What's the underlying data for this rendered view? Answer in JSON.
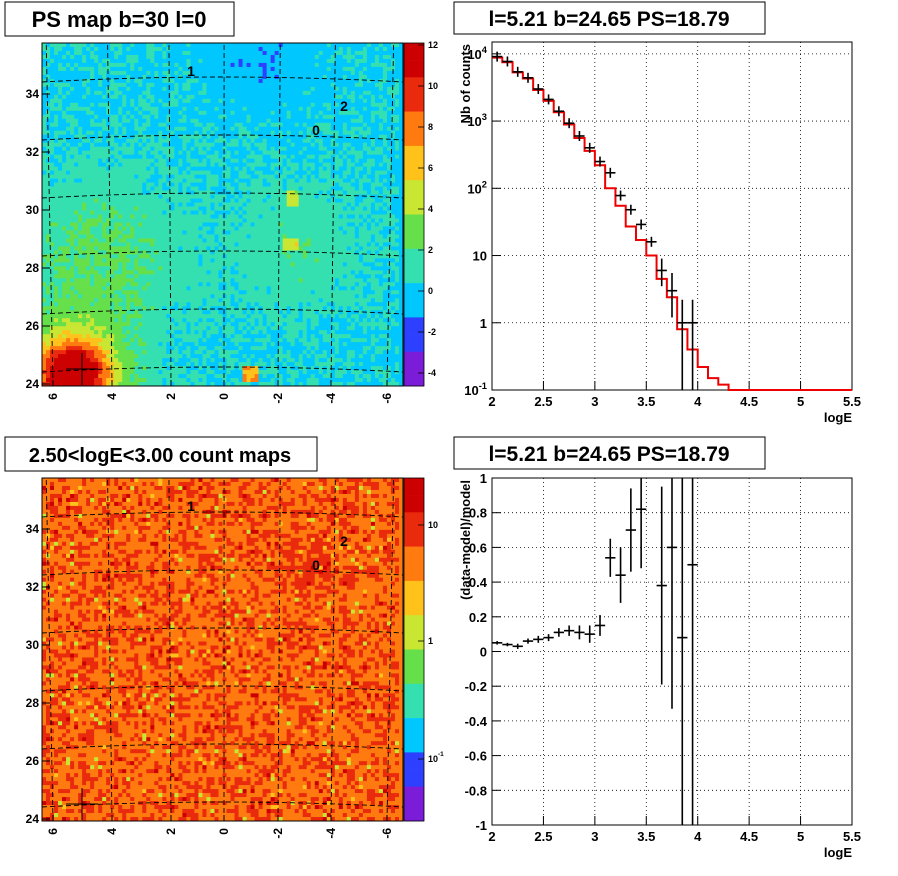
{
  "panels": {
    "tl": {
      "title": "PS map b=30 l=0"
    },
    "tr": {
      "title": "l=5.21 b=24.65 PS=18.79"
    },
    "bl": {
      "title": "2.50<logE<3.00 count maps"
    },
    "br": {
      "title": "l=5.21 b=24.65 PS=18.79"
    }
  },
  "chart_data": [
    {
      "type": "heatmap",
      "title": "PS map b=30 l=0",
      "x_ticks": [
        "6",
        "4",
        "2",
        "0",
        "-2",
        "-4",
        "-6"
      ],
      "y_ticks": [
        "24",
        "26",
        "28",
        "30",
        "32",
        "34"
      ],
      "colorbar_ticks": [
        "12",
        "10",
        "8",
        "6",
        "4",
        "2",
        "0",
        "-2",
        "-4"
      ],
      "source_labels": [
        "1",
        "2",
        "0"
      ],
      "colors": [
        "#7a1cd8",
        "#2d3fff",
        "#00c8ff",
        "#34e0b0",
        "#66e04a",
        "#c8e632",
        "#ffc21a",
        "#ff7a0f",
        "#ea2a0c",
        "#cc0000"
      ]
    },
    {
      "type": "line",
      "title": "l=5.21 b=24.65 PS=18.79",
      "xlabel": "logE",
      "ylabel": "Nb of counts",
      "yscale": "log",
      "xlim": [
        2,
        5.5
      ],
      "ylim": [
        0.1,
        15000
      ],
      "x_ticks": [
        "2",
        "2.5",
        "3",
        "3.5",
        "4",
        "4.5",
        "5",
        "5.5"
      ],
      "y_ticks": [
        "10^4",
        "10^3",
        "10^2",
        "10",
        "1",
        "10^-1"
      ],
      "grid": true,
      "model_bin_edges": [
        2.0,
        2.1,
        2.2,
        2.3,
        2.4,
        2.5,
        2.6,
        2.7,
        2.8,
        2.9,
        3.0,
        3.1,
        3.2,
        3.3,
        3.4,
        3.5,
        3.6,
        3.7,
        3.8,
        3.9,
        4.0,
        4.1,
        4.2,
        4.3,
        4.4,
        4.5,
        4.6,
        4.7,
        4.8,
        4.9,
        5.0,
        5.1,
        5.2,
        5.3,
        5.4,
        5.5
      ],
      "model_values": [
        8800,
        7500,
        5300,
        4300,
        2900,
        2000,
        1350,
        890,
        560,
        360,
        220,
        100,
        55,
        27,
        17,
        10,
        4.5,
        2.4,
        0.8,
        0.4,
        0.22,
        0.15,
        0.12,
        0.1,
        0.1,
        0.1,
        0.1,
        0.1,
        0.1,
        0.1,
        0.1,
        0.1,
        0.1,
        0.1,
        0.1
      ],
      "data_points": [
        {
          "x": 2.05,
          "y": 9100
        },
        {
          "x": 2.15,
          "y": 7700
        },
        {
          "x": 2.25,
          "y": 5400
        },
        {
          "x": 2.35,
          "y": 4400
        },
        {
          "x": 2.45,
          "y": 3000
        },
        {
          "x": 2.55,
          "y": 2100
        },
        {
          "x": 2.65,
          "y": 1400
        },
        {
          "x": 2.75,
          "y": 930
        },
        {
          "x": 2.85,
          "y": 600
        },
        {
          "x": 2.95,
          "y": 400
        },
        {
          "x": 3.05,
          "y": 250
        },
        {
          "x": 3.15,
          "y": 170
        },
        {
          "x": 3.25,
          "y": 78
        },
        {
          "x": 3.35,
          "y": 48
        },
        {
          "x": 3.45,
          "y": 29
        },
        {
          "x": 3.55,
          "y": 16
        },
        {
          "x": 3.65,
          "y": 6,
          "ylo": 3.5,
          "yhi": 9
        },
        {
          "x": 3.75,
          "y": 3,
          "ylo": 1.2,
          "yhi": 5.5
        },
        {
          "x": 3.85,
          "y": 1,
          "ylo": 0.1,
          "yhi": 2.2
        },
        {
          "x": 3.95,
          "y": 1,
          "ylo": 0.1,
          "yhi": 2.2
        }
      ],
      "colors": {
        "model": "#ee0000",
        "data": "#000000"
      }
    },
    {
      "type": "heatmap",
      "title": "2.50<logE<3.00 count maps",
      "x_ticks": [
        "6",
        "4",
        "2",
        "0",
        "-2",
        "-4",
        "-6"
      ],
      "y_ticks": [
        "24",
        "26",
        "28",
        "30",
        "32",
        "34"
      ],
      "colorbar_ticks": [
        "10",
        "1",
        "10^-1"
      ],
      "source_labels": [
        "1",
        "2",
        "0"
      ],
      "colors": [
        "#7a1cd8",
        "#2d3fff",
        "#00c8ff",
        "#34e0b0",
        "#66e04a",
        "#c8e632",
        "#ffc21a",
        "#ff7a0f",
        "#ea2a0c",
        "#cc0000"
      ]
    },
    {
      "type": "scatter",
      "title": "l=5.21 b=24.65 PS=18.79",
      "xlabel": "logE",
      "ylabel": "(data-model)/model",
      "xlim": [
        2,
        5.5
      ],
      "ylim": [
        -1,
        1
      ],
      "x_ticks": [
        "2",
        "2.5",
        "3",
        "3.5",
        "4",
        "4.5",
        "5",
        "5.5"
      ],
      "y_ticks": [
        "1",
        "0.8",
        "0.6",
        "0.4",
        "0.2",
        "0",
        "-0.2",
        "-0.4",
        "-0.6",
        "-0.8",
        "-1"
      ],
      "grid": true,
      "points": [
        {
          "x": 2.05,
          "y": 0.05,
          "err": 0.01
        },
        {
          "x": 2.15,
          "y": 0.04,
          "err": 0.01
        },
        {
          "x": 2.25,
          "y": 0.03,
          "err": 0.015
        },
        {
          "x": 2.35,
          "y": 0.06,
          "err": 0.015
        },
        {
          "x": 2.45,
          "y": 0.07,
          "err": 0.02
        },
        {
          "x": 2.55,
          "y": 0.08,
          "err": 0.02
        },
        {
          "x": 2.65,
          "y": 0.11,
          "err": 0.025
        },
        {
          "x": 2.75,
          "y": 0.12,
          "err": 0.03
        },
        {
          "x": 2.85,
          "y": 0.11,
          "err": 0.04
        },
        {
          "x": 2.95,
          "y": 0.1,
          "err": 0.05
        },
        {
          "x": 3.05,
          "y": 0.15,
          "err": 0.06
        },
        {
          "x": 3.15,
          "y": 0.54,
          "err": 0.11
        },
        {
          "x": 3.25,
          "y": 0.44,
          "err": 0.16
        },
        {
          "x": 3.35,
          "y": 0.7,
          "err": 0.24
        },
        {
          "x": 3.45,
          "y": 0.82,
          "err": 0.34
        },
        {
          "x": 3.65,
          "y": 0.38,
          "err": 0.57
        },
        {
          "x": 3.75,
          "y": 0.6,
          "err": 0.93
        },
        {
          "x": 3.85,
          "y": 0.08,
          "err": 1.5
        },
        {
          "x": 3.95,
          "y": 0.5,
          "err": 1.5
        }
      ],
      "colors": {
        "data": "#000000"
      }
    }
  ]
}
